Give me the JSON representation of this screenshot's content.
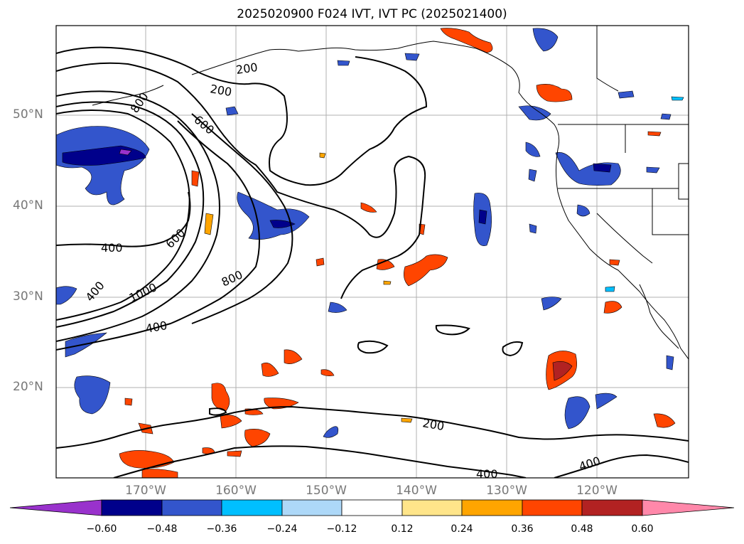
{
  "title": "2025020900 F024 IVT, IVT PC (2025021400)",
  "lat_labels": [
    "50°N",
    "40°N",
    "30°N",
    "20°N"
  ],
  "lon_labels": [
    "170°W",
    "160°W",
    "150°W",
    "140°W",
    "130°W",
    "120°W"
  ],
  "contour_labels": [
    "200",
    "200",
    "800",
    "600",
    "400",
    "600",
    "400",
    "1000",
    "800",
    "400",
    "200",
    "400",
    "400"
  ],
  "colorbar": {
    "ticks": [
      "−0.60",
      "−0.48",
      "−0.36",
      "−0.24",
      "−0.12",
      "0.12",
      "0.24",
      "0.36",
      "0.48",
      "0.60"
    ],
    "colors": [
      "#9932cc",
      "#00008b",
      "#3355cc",
      "#00bfff",
      "#add8f8",
      "#ffffff",
      "#ffe58a",
      "#ffa500",
      "#ff4500",
      "#b22222",
      "#ff88aa"
    ]
  }
}
